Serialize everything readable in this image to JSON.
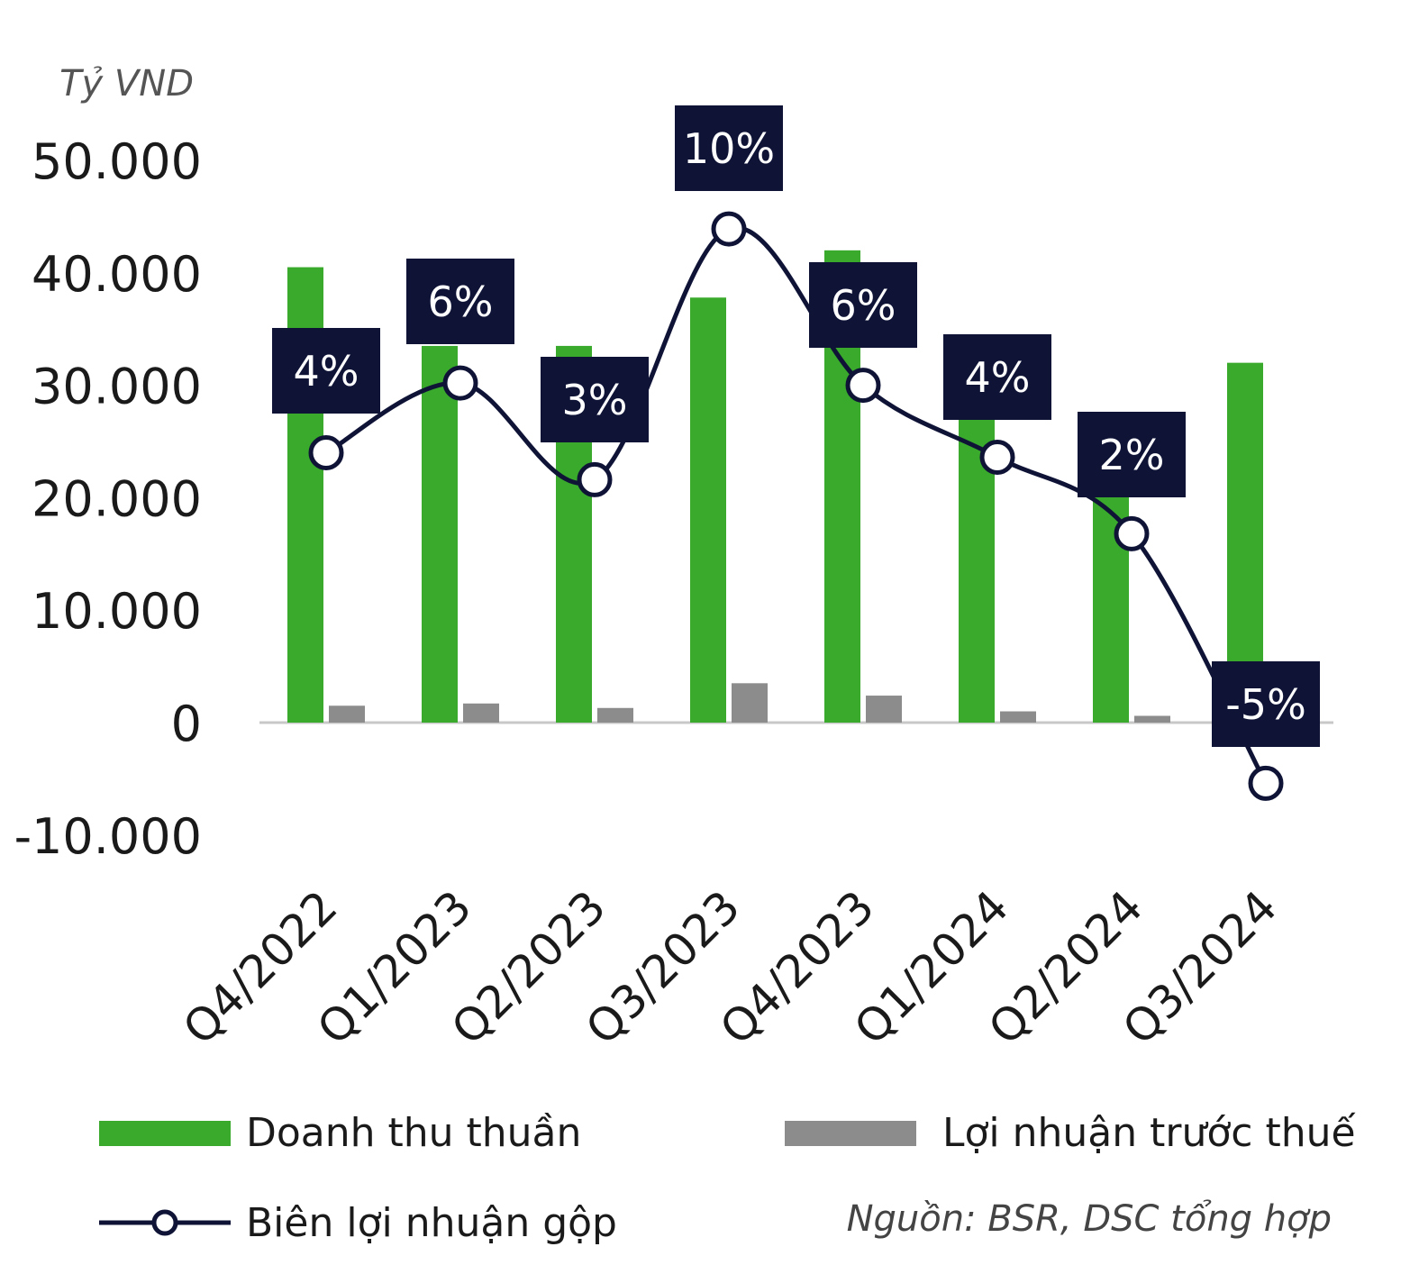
{
  "chart_data": {
    "type": "bar",
    "y_unit": "Tỷ VND",
    "categories": [
      "Q4/2022",
      "Q1/2023",
      "Q2/2023",
      "Q3/2023",
      "Q4/2023",
      "Q1/2024",
      "Q2/2024",
      "Q3/2024"
    ],
    "y_ticks": [
      "50.000",
      "40.000",
      "30.000",
      "20.000",
      "10.000",
      "0",
      "-10.000"
    ],
    "y_tick_values": [
      50000,
      40000,
      30000,
      20000,
      10000,
      0,
      -10000
    ],
    "ylim": [
      -10000,
      50000
    ],
    "grid": false,
    "legend_position": "bottom",
    "series": [
      {
        "name": "Doanh thu thuần",
        "kind": "bar",
        "color": "#3aaa2c",
        "values": [
          40500,
          33500,
          33500,
          37800,
          42000,
          29000,
          22500,
          32000
        ]
      },
      {
        "name": "Lợi nhuận trước thuế",
        "kind": "bar",
        "color": "#8c8c8c",
        "values": [
          1500,
          1700,
          1300,
          3500,
          2400,
          1000,
          600,
          0
        ]
      },
      {
        "name": "Biên lợi nhuận gộp",
        "kind": "line",
        "color": "#0f1437",
        "values_pct": [
          4,
          6,
          3,
          10,
          6,
          4,
          2,
          -5
        ],
        "labels": [
          "4%",
          "6%",
          "3%",
          "10%",
          "6%",
          "4%",
          "2%",
          "-5%"
        ],
        "marker_axis_values": [
          24000,
          30200,
          21600,
          43900,
          30000,
          23600,
          16800,
          -5400
        ]
      }
    ],
    "source": "Nguồn: BSR, DSC tổng hợp"
  }
}
